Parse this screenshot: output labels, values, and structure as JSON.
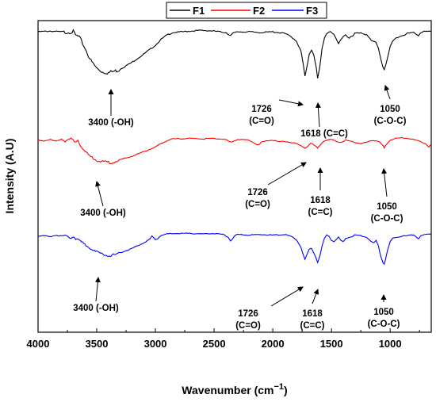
{
  "chart_data": {
    "type": "line",
    "title": "",
    "xlabel_main": "Wavenumber (cm",
    "xlabel_sup": "−1",
    "xlabel_close": ")",
    "ylabel": "Intensity (A.U)",
    "xlim": [
      4000,
      650
    ],
    "x_reversed": true,
    "x_ticks": [
      4000,
      3500,
      3000,
      2500,
      2000,
      1500,
      1000
    ],
    "y_ticks_shown": false,
    "legend_position": "top-center",
    "series": [
      {
        "name": "F1",
        "color": "#000000",
        "points": [
          [
            4000,
            0.96
          ],
          [
            3900,
            0.97
          ],
          [
            3800,
            0.96
          ],
          [
            3700,
            0.97
          ],
          [
            3680,
            0.92
          ],
          [
            3650,
            0.9
          ],
          [
            3600,
            0.75
          ],
          [
            3550,
            0.58
          ],
          [
            3500,
            0.48
          ],
          [
            3450,
            0.43
          ],
          [
            3400,
            0.42
          ],
          [
            3350,
            0.44
          ],
          [
            3300,
            0.46
          ],
          [
            3200,
            0.55
          ],
          [
            3100,
            0.66
          ],
          [
            3000,
            0.78
          ],
          [
            2950,
            0.86
          ],
          [
            2900,
            0.92
          ],
          [
            2850,
            0.95
          ],
          [
            2700,
            0.97
          ],
          [
            2600,
            0.98
          ],
          [
            2500,
            0.97
          ],
          [
            2400,
            0.95
          ],
          [
            2360,
            0.91
          ],
          [
            2340,
            0.94
          ],
          [
            2300,
            0.96
          ],
          [
            2200,
            0.96
          ],
          [
            2100,
            0.95
          ],
          [
            2000,
            0.96
          ],
          [
            1950,
            0.95
          ],
          [
            1900,
            0.94
          ],
          [
            1850,
            0.9
          ],
          [
            1800,
            0.84
          ],
          [
            1760,
            0.7
          ],
          [
            1740,
            0.52
          ],
          [
            1726,
            0.36
          ],
          [
            1710,
            0.48
          ],
          [
            1690,
            0.66
          ],
          [
            1670,
            0.72
          ],
          [
            1650,
            0.65
          ],
          [
            1630,
            0.48
          ],
          [
            1618,
            0.33
          ],
          [
            1600,
            0.48
          ],
          [
            1580,
            0.74
          ],
          [
            1560,
            0.88
          ],
          [
            1540,
            0.94
          ],
          [
            1510,
            0.97
          ],
          [
            1480,
            0.92
          ],
          [
            1460,
            0.86
          ],
          [
            1440,
            0.8
          ],
          [
            1420,
            0.86
          ],
          [
            1400,
            0.9
          ],
          [
            1380,
            0.92
          ],
          [
            1350,
            0.88
          ],
          [
            1320,
            0.9
          ],
          [
            1300,
            0.94
          ],
          [
            1250,
            0.95
          ],
          [
            1200,
            0.92
          ],
          [
            1160,
            0.84
          ],
          [
            1120,
            0.82
          ],
          [
            1100,
            0.74
          ],
          [
            1080,
            0.6
          ],
          [
            1060,
            0.48
          ],
          [
            1050,
            0.45
          ],
          [
            1040,
            0.5
          ],
          [
            1020,
            0.62
          ],
          [
            1000,
            0.76
          ],
          [
            980,
            0.84
          ],
          [
            950,
            0.88
          ],
          [
            900,
            0.9
          ],
          [
            880,
            0.91
          ],
          [
            850,
            0.94
          ],
          [
            800,
            0.96
          ],
          [
            760,
            0.9
          ],
          [
            740,
            0.94
          ],
          [
            700,
            0.97
          ],
          [
            650,
            0.97
          ]
        ]
      },
      {
        "name": "F2",
        "color": "#ff0000",
        "points": [
          [
            4000,
            0.94
          ],
          [
            3950,
            0.93
          ],
          [
            3900,
            0.95
          ],
          [
            3850,
            0.92
          ],
          [
            3800,
            0.96
          ],
          [
            3760,
            0.93
          ],
          [
            3720,
            0.97
          ],
          [
            3690,
            0.91
          ],
          [
            3660,
            0.95
          ],
          [
            3640,
            0.86
          ],
          [
            3600,
            0.74
          ],
          [
            3550,
            0.66
          ],
          [
            3500,
            0.6
          ],
          [
            3450,
            0.57
          ],
          [
            3400,
            0.56
          ],
          [
            3350,
            0.57
          ],
          [
            3300,
            0.6
          ],
          [
            3200,
            0.66
          ],
          [
            3100,
            0.74
          ],
          [
            3000,
            0.82
          ],
          [
            2950,
            0.88
          ],
          [
            2900,
            0.93
          ],
          [
            2850,
            0.96
          ],
          [
            2700,
            0.97
          ],
          [
            2600,
            0.96
          ],
          [
            2500,
            0.97
          ],
          [
            2400,
            0.95
          ],
          [
            2360,
            0.9
          ],
          [
            2340,
            0.92
          ],
          [
            2300,
            0.95
          ],
          [
            2200,
            0.94
          ],
          [
            2150,
            0.88
          ],
          [
            2120,
            0.85
          ],
          [
            2100,
            0.9
          ],
          [
            2050,
            0.93
          ],
          [
            2000,
            0.94
          ],
          [
            1950,
            0.91
          ],
          [
            1900,
            0.92
          ],
          [
            1850,
            0.9
          ],
          [
            1800,
            0.88
          ],
          [
            1760,
            0.84
          ],
          [
            1726,
            0.8
          ],
          [
            1700,
            0.84
          ],
          [
            1680,
            0.88
          ],
          [
            1660,
            0.87
          ],
          [
            1640,
            0.84
          ],
          [
            1618,
            0.8
          ],
          [
            1600,
            0.85
          ],
          [
            1580,
            0.9
          ],
          [
            1560,
            0.93
          ],
          [
            1540,
            0.94
          ],
          [
            1500,
            0.95
          ],
          [
            1460,
            0.92
          ],
          [
            1420,
            0.9
          ],
          [
            1400,
            0.92
          ],
          [
            1380,
            0.94
          ],
          [
            1340,
            0.92
          ],
          [
            1300,
            0.9
          ],
          [
            1250,
            0.88
          ],
          [
            1200,
            0.9
          ],
          [
            1150,
            0.94
          ],
          [
            1100,
            0.92
          ],
          [
            1080,
            0.88
          ],
          [
            1060,
            0.84
          ],
          [
            1050,
            0.8
          ],
          [
            1040,
            0.84
          ],
          [
            1020,
            0.9
          ],
          [
            1000,
            0.94
          ],
          [
            950,
            0.97
          ],
          [
            900,
            0.98
          ],
          [
            850,
            0.97
          ],
          [
            800,
            0.95
          ],
          [
            750,
            0.92
          ],
          [
            700,
            0.88
          ],
          [
            670,
            0.82
          ],
          [
            650,
            0.86
          ]
        ]
      },
      {
        "name": "F3",
        "color": "#0000ff",
        "points": [
          [
            4000,
            0.92
          ],
          [
            3950,
            0.93
          ],
          [
            3900,
            0.91
          ],
          [
            3850,
            0.94
          ],
          [
            3800,
            0.92
          ],
          [
            3760,
            0.93
          ],
          [
            3720,
            0.91
          ],
          [
            3700,
            0.93
          ],
          [
            3680,
            0.88
          ],
          [
            3650,
            0.85
          ],
          [
            3600,
            0.78
          ],
          [
            3550,
            0.7
          ],
          [
            3500,
            0.64
          ],
          [
            3450,
            0.6
          ],
          [
            3400,
            0.58
          ],
          [
            3350,
            0.59
          ],
          [
            3300,
            0.62
          ],
          [
            3200,
            0.7
          ],
          [
            3100,
            0.8
          ],
          [
            3050,
            0.86
          ],
          [
            3030,
            0.92
          ],
          [
            3000,
            0.86
          ],
          [
            2980,
            0.88
          ],
          [
            2950,
            0.94
          ],
          [
            2900,
            0.96
          ],
          [
            2800,
            0.97
          ],
          [
            2700,
            0.97
          ],
          [
            2600,
            0.96
          ],
          [
            2500,
            0.97
          ],
          [
            2420,
            0.95
          ],
          [
            2380,
            0.9
          ],
          [
            2360,
            0.84
          ],
          [
            2340,
            0.88
          ],
          [
            2320,
            0.93
          ],
          [
            2300,
            0.95
          ],
          [
            2200,
            0.94
          ],
          [
            2100,
            0.95
          ],
          [
            2000,
            0.94
          ],
          [
            1900,
            0.95
          ],
          [
            1850,
            0.92
          ],
          [
            1800,
            0.86
          ],
          [
            1760,
            0.72
          ],
          [
            1740,
            0.58
          ],
          [
            1726,
            0.5
          ],
          [
            1710,
            0.58
          ],
          [
            1690,
            0.68
          ],
          [
            1670,
            0.7
          ],
          [
            1650,
            0.62
          ],
          [
            1630,
            0.52
          ],
          [
            1618,
            0.45
          ],
          [
            1600,
            0.55
          ],
          [
            1580,
            0.74
          ],
          [
            1560,
            0.88
          ],
          [
            1540,
            0.94
          ],
          [
            1520,
            0.92
          ],
          [
            1500,
            0.85
          ],
          [
            1480,
            0.82
          ],
          [
            1460,
            0.86
          ],
          [
            1440,
            0.9
          ],
          [
            1420,
            0.84
          ],
          [
            1400,
            0.82
          ],
          [
            1380,
            0.88
          ],
          [
            1350,
            0.9
          ],
          [
            1320,
            0.92
          ],
          [
            1300,
            0.94
          ],
          [
            1250,
            0.93
          ],
          [
            1200,
            0.9
          ],
          [
            1160,
            0.82
          ],
          [
            1140,
            0.8
          ],
          [
            1120,
            0.84
          ],
          [
            1100,
            0.74
          ],
          [
            1080,
            0.56
          ],
          [
            1060,
            0.44
          ],
          [
            1050,
            0.42
          ],
          [
            1040,
            0.5
          ],
          [
            1020,
            0.68
          ],
          [
            1000,
            0.82
          ],
          [
            980,
            0.88
          ],
          [
            950,
            0.9
          ],
          [
            900,
            0.92
          ],
          [
            850,
            0.93
          ],
          [
            800,
            0.95
          ],
          [
            760,
            0.88
          ],
          [
            740,
            0.92
          ],
          [
            700,
            0.95
          ],
          [
            650,
            0.96
          ]
        ]
      }
    ],
    "annotations": [
      {
        "series": "F1",
        "x": 3400,
        "line1": "3400 (-OH)",
        "line2": ""
      },
      {
        "series": "F1",
        "x": 1726,
        "line1": "1726",
        "line2": "(C=O)"
      },
      {
        "series": "F1",
        "x": 1618,
        "line1": "1618 (C=C)",
        "line2": ""
      },
      {
        "series": "F1",
        "x": 1050,
        "line1": "1050",
        "line2": "(C-O-C)"
      },
      {
        "series": "F2",
        "x": 3400,
        "line1": "3400 (-OH)",
        "line2": ""
      },
      {
        "series": "F2",
        "x": 1726,
        "line1": "1726",
        "line2": "(C=O)"
      },
      {
        "series": "F2",
        "x": 1618,
        "line1": "1618",
        "line2": "(C=C)"
      },
      {
        "series": "F2",
        "x": 1050,
        "line1": "1050",
        "line2": "(C-O-C)"
      },
      {
        "series": "F3",
        "x": 3400,
        "line1": "3400 (-OH)",
        "line2": ""
      },
      {
        "series": "F3",
        "x": 1726,
        "line1": "1726",
        "line2": "(C=O)"
      },
      {
        "series": "F3",
        "x": 1618,
        "line1": "1618",
        "line2": "(C=C)"
      },
      {
        "series": "F3",
        "x": 1050,
        "line1": "1050",
        "line2": "(C-O-C)"
      }
    ]
  }
}
